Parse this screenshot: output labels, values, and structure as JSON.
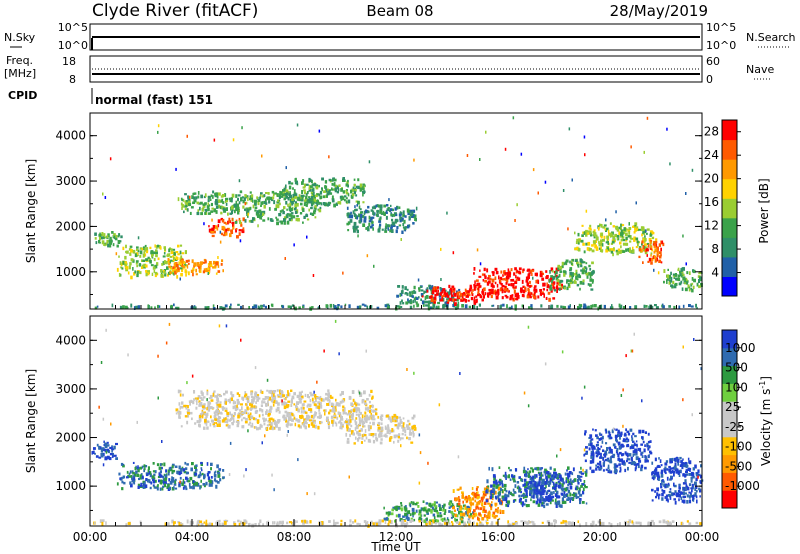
{
  "header": {
    "station": "Clyde River (fitACF)",
    "beam": "Beam 08",
    "date": "28/May/2019"
  },
  "top_panels": {
    "nsky_label": "N.Sky",
    "nsky_ticks": [
      "10^5",
      "10^0"
    ],
    "nsearch_label": "N.Search",
    "nsearch_ticks": [
      "10^5",
      "10^0"
    ],
    "freq_label": "Freq.",
    "freq_unit": "[MHz]",
    "freq_ticks": [
      "18",
      "8"
    ],
    "nave_label": "Nave",
    "nave_ticks": [
      "60",
      "0"
    ],
    "cpid_label": "CPID",
    "cpid_text": "normal (fast) 151"
  },
  "colors": {
    "power": [
      "#0000ff",
      "#2060a8",
      "#2f8f68",
      "#3aa24a",
      "#9acd32",
      "#ffd200",
      "#ff9900",
      "#ff5a00",
      "#ff0000"
    ],
    "velocity": [
      "#ff0000",
      "#ff5a00",
      "#ff9a00",
      "#ffc000",
      "#c8c8c8",
      "#c8c8c8",
      "#6fcf3f",
      "#2d9a40",
      "#2f6bb0",
      "#1f3fcf"
    ]
  },
  "chart_data": [
    {
      "type": "heatmap",
      "name_printed": "",
      "ylabel": "Slant Range [km]",
      "yticks": [
        "1000",
        "2000",
        "3000",
        "4000"
      ],
      "ylim": [
        180,
        4500
      ],
      "xlim": [
        "00:00",
        "24:00"
      ],
      "colorbar_label": "Power [dB]",
      "colorbar_ticks": [
        "4",
        "8",
        "12",
        "16",
        "20",
        "24",
        "28"
      ],
      "colorbar_range": [
        0,
        30
      ],
      "blobs": [
        {
          "t": [
            0.0,
            1.3
          ],
          "r": [
            1600,
            1900
          ],
          "level": 3
        },
        {
          "t": [
            1.0,
            3.8
          ],
          "r": [
            900,
            1600
          ],
          "level": 4
        },
        {
          "t": [
            3.0,
            5.2
          ],
          "r": [
            950,
            1300
          ],
          "level": 6
        },
        {
          "t": [
            3.4,
            5.8
          ],
          "r": [
            2300,
            2800
          ],
          "level": 3
        },
        {
          "t": [
            4.6,
            6.0
          ],
          "r": [
            1800,
            2200
          ],
          "level": 7
        },
        {
          "t": [
            5.5,
            9.0
          ],
          "r": [
            2100,
            2800
          ],
          "level": 3
        },
        {
          "t": [
            7.5,
            10.8
          ],
          "r": [
            2500,
            3100
          ],
          "level": 3
        },
        {
          "t": [
            10.0,
            12.8
          ],
          "r": [
            1900,
            2500
          ],
          "level": 2
        },
        {
          "t": [
            12.0,
            14.5
          ],
          "r": [
            250,
            700
          ],
          "level": 2
        },
        {
          "t": [
            13.0,
            15.5
          ],
          "r": [
            300,
            700
          ],
          "level": 8
        },
        {
          "t": [
            15.0,
            18.5
          ],
          "r": [
            400,
            1100
          ],
          "level": 8
        },
        {
          "t": [
            18.0,
            19.8
          ],
          "r": [
            600,
            1300
          ],
          "level": 3
        },
        {
          "t": [
            19.0,
            22.2
          ],
          "r": [
            1400,
            2100
          ],
          "level": 4
        },
        {
          "t": [
            21.5,
            22.5
          ],
          "r": [
            1200,
            1700
          ],
          "level": 7
        },
        {
          "t": [
            22.5,
            24.0
          ],
          "r": [
            600,
            1100
          ],
          "level": 3
        },
        {
          "t": [
            0.0,
            24.0
          ],
          "r": [
            200,
            280
          ],
          "level": 2
        }
      ]
    },
    {
      "type": "heatmap",
      "ylabel": "Slant Range [km]",
      "yticks": [
        "1000",
        "2000",
        "3000",
        "4000"
      ],
      "ylim": [
        180,
        4500
      ],
      "xlim": [
        "00:00",
        "24:00"
      ],
      "xticks": [
        "00:00",
        "04:00",
        "08:00",
        "12:00",
        "16:00",
        "20:00",
        "00:00"
      ],
      "xlabel": "Time UT",
      "colorbar_label": "Velocity [m s^-1]",
      "colorbar_ticks": [
        "1000",
        "500",
        "100",
        "25",
        "-25",
        "-100",
        "-500",
        "-1000"
      ],
      "blobs": [
        {
          "t": [
            0.0,
            1.0
          ],
          "r": [
            1550,
            1950
          ],
          "level": 9
        },
        {
          "t": [
            1.0,
            5.2
          ],
          "r": [
            950,
            1500
          ],
          "level": 8
        },
        {
          "t": [
            3.3,
            11.2
          ],
          "r": [
            2200,
            3000
          ],
          "level": 4
        },
        {
          "t": [
            10.0,
            12.8
          ],
          "r": [
            1900,
            2500
          ],
          "level": 4
        },
        {
          "t": [
            11.5,
            15.0
          ],
          "r": [
            250,
            700
          ],
          "level": 7
        },
        {
          "t": [
            14.2,
            16.2
          ],
          "r": [
            300,
            1000
          ],
          "level": 2
        },
        {
          "t": [
            15.5,
            19.5
          ],
          "r": [
            600,
            1400
          ],
          "level": 8
        },
        {
          "t": [
            17.0,
            18.5
          ],
          "r": [
            700,
            1300
          ],
          "level": 9
        },
        {
          "t": [
            19.3,
            22.0
          ],
          "r": [
            1300,
            2200
          ],
          "level": 9
        },
        {
          "t": [
            22.0,
            24.0
          ],
          "r": [
            650,
            1600
          ],
          "level": 9
        },
        {
          "t": [
            0.0,
            24.0
          ],
          "r": [
            200,
            300
          ],
          "level": 4
        }
      ]
    }
  ]
}
